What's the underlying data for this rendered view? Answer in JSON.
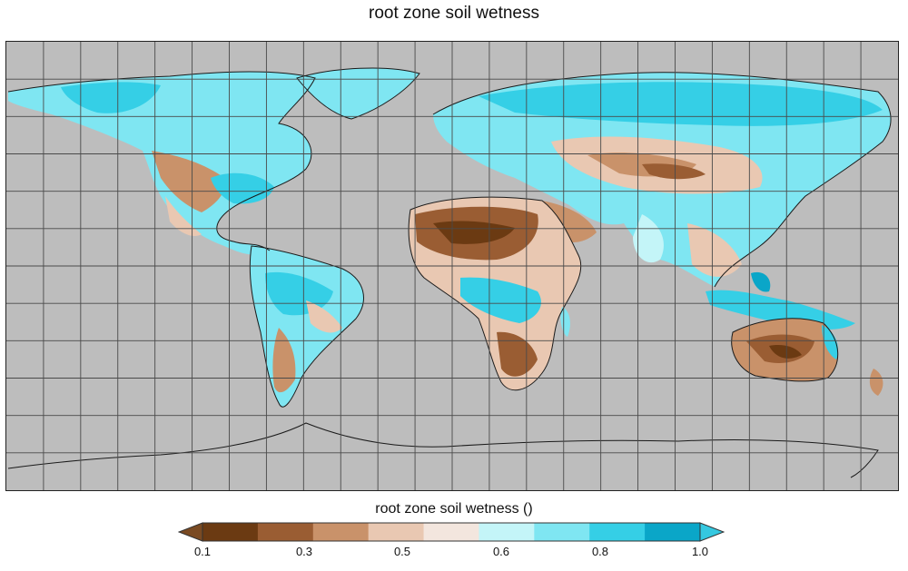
{
  "title": "root zone soil wetness",
  "map": {
    "ocean_color": "#bdbdbd",
    "grid_color": "#4a4a4a",
    "coast_color": "#1a1a1a",
    "palette": {
      "very_dry": "#6b3a12",
      "dry": "#9a5d33",
      "moderately_dry": "#c9926a",
      "slightly_dry": "#e9c8b2",
      "near_neutral": "#f3e6de",
      "slightly_wet": "#c4f5f8",
      "wet": "#7fe6f2",
      "very_wet": "#35cfe6",
      "saturated": "#0aa6c8"
    }
  },
  "legend": {
    "title": "root zone soil wetness ()",
    "colors": [
      "#6b3a12",
      "#9a5d33",
      "#c9926a",
      "#e9c8b2",
      "#f3e6de",
      "#c4f5f8",
      "#7fe6f2",
      "#35cfe6",
      "#0aa6c8"
    ],
    "under_color": "#7a4a22",
    "over_color": "#35c8e0",
    "tick_labels": [
      "0.1",
      "0.3",
      "0.5",
      "0.6",
      "0.8",
      "1.0"
    ]
  }
}
